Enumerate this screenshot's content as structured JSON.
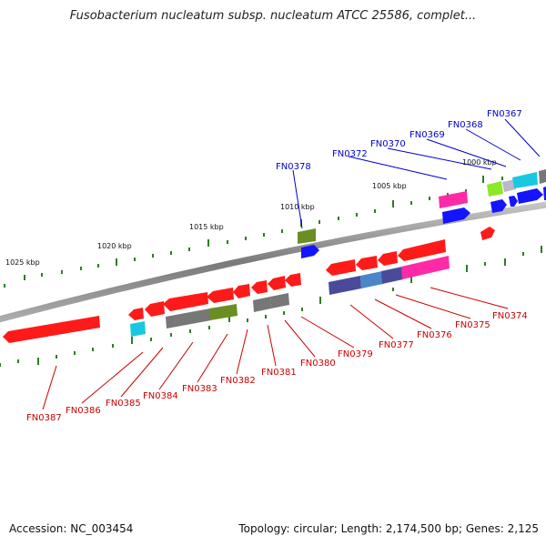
{
  "title": "Fusobacterium nucleatum subsp. nucleatum ATCC 25586, complet...",
  "accession": "Accession: NC_003454",
  "topology": "Topology: circular; Length: 2,174,500 bp; Genes: 2,125",
  "colors": {
    "backbone": "#8a8a8a",
    "tick": "#2e7d22",
    "forward_label": "#0000cc",
    "reverse_label": "#cc0000",
    "red": "#ff1a1a",
    "blue": "#1414ff",
    "magenta": "#ff2aa6",
    "gray": "#777777",
    "olive": "#6b8e23",
    "cyan": "#19c8e0",
    "navy": "#4a4a9a",
    "steelblue": "#4a86c8",
    "lime": "#8ee82a",
    "silver": "#b8b8c8"
  },
  "kbp_labels": [
    "1025 kbp",
    "1020 kbp",
    "1015 kbp",
    "1010 kbp",
    "1005 kbp",
    "1000 kbp"
  ],
  "forward_genes": [
    "FN0378",
    "FN0372",
    "FN0370",
    "FN0369",
    "FN0368",
    "FN0367"
  ],
  "reverse_genes": [
    "FN0387",
    "FN0386",
    "FN0385",
    "FN0384",
    "FN0383",
    "FN0382",
    "FN0381",
    "FN0380",
    "FN0379",
    "FN0377",
    "FN0376",
    "FN0375",
    "FN0374"
  ]
}
